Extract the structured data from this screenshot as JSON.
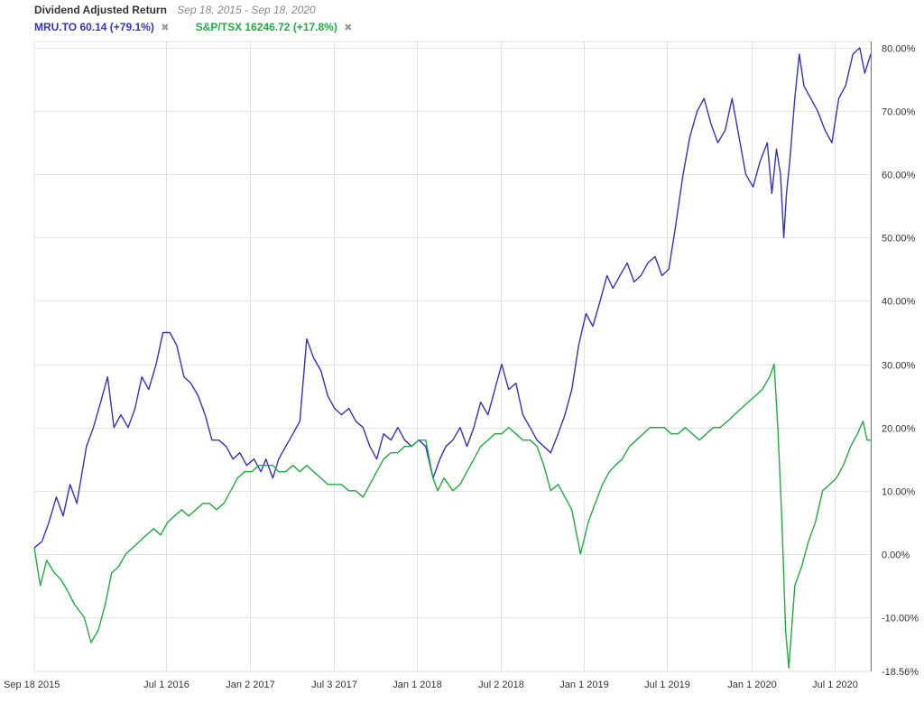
{
  "header": {
    "title": "Dividend Adjusted Return",
    "date_range": "Sep 18, 2015 - Sep 18, 2020"
  },
  "legend": [
    {
      "label": "MRU.TO 60.14 (+79.1%)",
      "color": "#3333bb",
      "close_glyph": "✖"
    },
    {
      "label": "S&P/TSX 16246.72 (+17.8%)",
      "color": "#22aa44",
      "close_glyph": "✖"
    }
  ],
  "chart_data": {
    "type": "line",
    "title": "Dividend Adjusted Return",
    "subtitle": "Sep 18, 2015 - Sep 18, 2020",
    "x_range": [
      "2015-09-18",
      "2020-09-18"
    ],
    "ylim": [
      -18.56,
      81
    ],
    "y_ticks": [
      80,
      70,
      60,
      50,
      40,
      30,
      20,
      10,
      0,
      -10
    ],
    "y_tick_labels": [
      "80.00%",
      "70.00%",
      "60.00%",
      "50.00%",
      "40.00%",
      "30.00%",
      "20.00%",
      "10.00%",
      "0.00%",
      "-10.00%"
    ],
    "y_min_label": "-18.56%",
    "x_ticks": [
      {
        "date": "2015-09-18",
        "label": "Sep 18 2015"
      },
      {
        "date": "2016-07-01",
        "label": "Jul 1 2016"
      },
      {
        "date": "2017-01-02",
        "label": "Jan 2 2017"
      },
      {
        "date": "2017-07-03",
        "label": "Jul 3 2017"
      },
      {
        "date": "2018-01-01",
        "label": "Jan 1 2018"
      },
      {
        "date": "2018-07-02",
        "label": "Jul 2 2018"
      },
      {
        "date": "2019-01-01",
        "label": "Jan 1 2019"
      },
      {
        "date": "2019-07-01",
        "label": "Jul 1 2019"
      },
      {
        "date": "2020-01-01",
        "label": "Jan 1 2020"
      },
      {
        "date": "2020-07-01",
        "label": "Jul 1 2020"
      }
    ],
    "grid": true,
    "legend_position": "top-left",
    "series": [
      {
        "name": "MRU.TO",
        "color": "#3333bb",
        "points": [
          [
            "2015-09-18",
            1
          ],
          [
            "2015-10-05",
            2
          ],
          [
            "2015-10-20",
            5
          ],
          [
            "2015-11-05",
            9
          ],
          [
            "2015-11-20",
            6
          ],
          [
            "2015-12-05",
            11
          ],
          [
            "2015-12-20",
            8
          ],
          [
            "2016-01-10",
            17
          ],
          [
            "2016-01-25",
            20
          ],
          [
            "2016-02-10",
            24
          ],
          [
            "2016-02-25",
            28
          ],
          [
            "2016-03-10",
            20
          ],
          [
            "2016-03-25",
            22
          ],
          [
            "2016-04-10",
            20
          ],
          [
            "2016-04-25",
            23
          ],
          [
            "2016-05-10",
            28
          ],
          [
            "2016-05-25",
            26
          ],
          [
            "2016-06-10",
            30
          ],
          [
            "2016-06-25",
            35
          ],
          [
            "2016-07-10",
            35
          ],
          [
            "2016-07-25",
            33
          ],
          [
            "2016-08-10",
            28
          ],
          [
            "2016-08-25",
            27
          ],
          [
            "2016-09-10",
            25
          ],
          [
            "2016-09-25",
            22
          ],
          [
            "2016-10-10",
            18
          ],
          [
            "2016-10-25",
            18
          ],
          [
            "2016-11-10",
            17
          ],
          [
            "2016-11-25",
            15
          ],
          [
            "2016-12-10",
            16
          ],
          [
            "2016-12-25",
            14
          ],
          [
            "2017-01-10",
            15
          ],
          [
            "2017-01-25",
            13
          ],
          [
            "2017-02-05",
            15
          ],
          [
            "2017-02-20",
            12
          ],
          [
            "2017-03-05",
            15
          ],
          [
            "2017-03-20",
            17
          ],
          [
            "2017-04-05",
            19
          ],
          [
            "2017-04-20",
            21
          ],
          [
            "2017-05-05",
            34
          ],
          [
            "2017-05-20",
            31
          ],
          [
            "2017-06-05",
            29
          ],
          [
            "2017-06-20",
            25
          ],
          [
            "2017-07-05",
            23
          ],
          [
            "2017-07-20",
            22
          ],
          [
            "2017-08-05",
            23
          ],
          [
            "2017-08-20",
            21
          ],
          [
            "2017-09-05",
            20
          ],
          [
            "2017-09-20",
            17
          ],
          [
            "2017-10-05",
            15
          ],
          [
            "2017-10-20",
            19
          ],
          [
            "2017-11-05",
            18
          ],
          [
            "2017-11-20",
            20
          ],
          [
            "2017-12-05",
            18
          ],
          [
            "2017-12-20",
            17
          ],
          [
            "2018-01-05",
            18
          ],
          [
            "2018-01-20",
            17
          ],
          [
            "2018-02-05",
            12
          ],
          [
            "2018-02-20",
            15
          ],
          [
            "2018-03-05",
            17
          ],
          [
            "2018-03-20",
            18
          ],
          [
            "2018-04-05",
            20
          ],
          [
            "2018-04-20",
            17
          ],
          [
            "2018-05-05",
            20
          ],
          [
            "2018-05-20",
            24
          ],
          [
            "2018-06-05",
            22
          ],
          [
            "2018-06-20",
            26
          ],
          [
            "2018-07-05",
            30
          ],
          [
            "2018-07-20",
            26
          ],
          [
            "2018-08-05",
            27
          ],
          [
            "2018-08-20",
            22
          ],
          [
            "2018-09-05",
            20
          ],
          [
            "2018-09-20",
            18
          ],
          [
            "2018-10-05",
            17
          ],
          [
            "2018-10-20",
            16
          ],
          [
            "2018-11-05",
            19
          ],
          [
            "2018-11-20",
            22
          ],
          [
            "2018-12-05",
            26
          ],
          [
            "2018-12-20",
            33
          ],
          [
            "2019-01-05",
            38
          ],
          [
            "2019-01-20",
            36
          ],
          [
            "2019-02-05",
            40
          ],
          [
            "2019-02-20",
            44
          ],
          [
            "2019-03-05",
            42
          ],
          [
            "2019-03-20",
            44
          ],
          [
            "2019-04-05",
            46
          ],
          [
            "2019-04-20",
            43
          ],
          [
            "2019-05-05",
            44
          ],
          [
            "2019-05-20",
            46
          ],
          [
            "2019-06-05",
            47
          ],
          [
            "2019-06-20",
            44
          ],
          [
            "2019-07-05",
            45
          ],
          [
            "2019-07-20",
            52
          ],
          [
            "2019-08-05",
            60
          ],
          [
            "2019-08-20",
            66
          ],
          [
            "2019-09-05",
            70
          ],
          [
            "2019-09-20",
            72
          ],
          [
            "2019-10-05",
            68
          ],
          [
            "2019-10-20",
            65
          ],
          [
            "2019-11-05",
            67
          ],
          [
            "2019-11-20",
            72
          ],
          [
            "2019-12-05",
            66
          ],
          [
            "2019-12-20",
            60
          ],
          [
            "2020-01-05",
            58
          ],
          [
            "2020-01-20",
            62
          ],
          [
            "2020-02-05",
            65
          ],
          [
            "2020-02-15",
            57
          ],
          [
            "2020-02-25",
            64
          ],
          [
            "2020-03-05",
            60
          ],
          [
            "2020-03-12",
            50
          ],
          [
            "2020-03-18",
            57
          ],
          [
            "2020-03-25",
            62
          ],
          [
            "2020-04-05",
            72
          ],
          [
            "2020-04-15",
            79
          ],
          [
            "2020-04-25",
            74
          ],
          [
            "2020-05-10",
            72
          ],
          [
            "2020-05-25",
            70
          ],
          [
            "2020-06-10",
            67
          ],
          [
            "2020-06-25",
            65
          ],
          [
            "2020-07-10",
            72
          ],
          [
            "2020-07-25",
            74
          ],
          [
            "2020-08-10",
            79
          ],
          [
            "2020-08-25",
            80
          ],
          [
            "2020-09-05",
            76
          ],
          [
            "2020-09-18",
            79
          ]
        ]
      },
      {
        "name": "S&P/TSX",
        "color": "#22aa44",
        "points": [
          [
            "2015-09-18",
            1
          ],
          [
            "2015-10-01",
            -5
          ],
          [
            "2015-10-15",
            -1
          ],
          [
            "2015-11-01",
            -3
          ],
          [
            "2015-11-15",
            -4
          ],
          [
            "2015-12-01",
            -6
          ],
          [
            "2015-12-15",
            -8
          ],
          [
            "2016-01-05",
            -10
          ],
          [
            "2016-01-20",
            -14
          ],
          [
            "2016-02-05",
            -12
          ],
          [
            "2016-02-20",
            -8
          ],
          [
            "2016-03-05",
            -3
          ],
          [
            "2016-03-20",
            -2
          ],
          [
            "2016-04-05",
            0
          ],
          [
            "2016-04-20",
            1
          ],
          [
            "2016-05-05",
            2
          ],
          [
            "2016-05-20",
            3
          ],
          [
            "2016-06-05",
            4
          ],
          [
            "2016-06-20",
            3
          ],
          [
            "2016-07-05",
            5
          ],
          [
            "2016-07-20",
            6
          ],
          [
            "2016-08-05",
            7
          ],
          [
            "2016-08-20",
            6
          ],
          [
            "2016-09-05",
            7
          ],
          [
            "2016-09-20",
            8
          ],
          [
            "2016-10-05",
            8
          ],
          [
            "2016-10-20",
            7
          ],
          [
            "2016-11-05",
            8
          ],
          [
            "2016-11-20",
            10
          ],
          [
            "2016-12-05",
            12
          ],
          [
            "2016-12-20",
            13
          ],
          [
            "2017-01-05",
            13
          ],
          [
            "2017-01-20",
            14
          ],
          [
            "2017-02-05",
            14
          ],
          [
            "2017-02-20",
            14
          ],
          [
            "2017-03-05",
            13
          ],
          [
            "2017-03-20",
            13
          ],
          [
            "2017-04-05",
            14
          ],
          [
            "2017-04-20",
            13
          ],
          [
            "2017-05-05",
            14
          ],
          [
            "2017-05-20",
            13
          ],
          [
            "2017-06-05",
            12
          ],
          [
            "2017-06-20",
            11
          ],
          [
            "2017-07-05",
            11
          ],
          [
            "2017-07-20",
            11
          ],
          [
            "2017-08-05",
            10
          ],
          [
            "2017-08-20",
            10
          ],
          [
            "2017-09-05",
            9
          ],
          [
            "2017-09-20",
            11
          ],
          [
            "2017-10-05",
            13
          ],
          [
            "2017-10-20",
            15
          ],
          [
            "2017-11-05",
            16
          ],
          [
            "2017-11-20",
            16
          ],
          [
            "2017-12-05",
            17
          ],
          [
            "2017-12-20",
            17
          ],
          [
            "2018-01-05",
            18
          ],
          [
            "2018-01-20",
            18
          ],
          [
            "2018-02-05",
            12
          ],
          [
            "2018-02-15",
            10
          ],
          [
            "2018-03-01",
            12
          ],
          [
            "2018-03-20",
            10
          ],
          [
            "2018-04-05",
            11
          ],
          [
            "2018-04-20",
            13
          ],
          [
            "2018-05-05",
            15
          ],
          [
            "2018-05-20",
            17
          ],
          [
            "2018-06-05",
            18
          ],
          [
            "2018-06-20",
            19
          ],
          [
            "2018-07-05",
            19
          ],
          [
            "2018-07-20",
            20
          ],
          [
            "2018-08-05",
            19
          ],
          [
            "2018-08-20",
            18
          ],
          [
            "2018-09-05",
            18
          ],
          [
            "2018-09-20",
            17
          ],
          [
            "2018-10-05",
            14
          ],
          [
            "2018-10-20",
            10
          ],
          [
            "2018-11-05",
            11
          ],
          [
            "2018-11-20",
            9
          ],
          [
            "2018-12-05",
            7
          ],
          [
            "2018-12-24",
            0
          ],
          [
            "2019-01-10",
            5
          ],
          [
            "2019-01-25",
            8
          ],
          [
            "2019-02-10",
            11
          ],
          [
            "2019-02-25",
            13
          ],
          [
            "2019-03-10",
            14
          ],
          [
            "2019-03-25",
            15
          ],
          [
            "2019-04-10",
            17
          ],
          [
            "2019-04-25",
            18
          ],
          [
            "2019-05-10",
            19
          ],
          [
            "2019-05-25",
            20
          ],
          [
            "2019-06-10",
            20
          ],
          [
            "2019-06-25",
            20
          ],
          [
            "2019-07-10",
            19
          ],
          [
            "2019-07-25",
            19
          ],
          [
            "2019-08-10",
            20
          ],
          [
            "2019-08-25",
            19
          ],
          [
            "2019-09-10",
            18
          ],
          [
            "2019-09-25",
            19
          ],
          [
            "2019-10-10",
            20
          ],
          [
            "2019-10-25",
            20
          ],
          [
            "2019-11-10",
            21
          ],
          [
            "2019-11-25",
            22
          ],
          [
            "2019-12-10",
            23
          ],
          [
            "2019-12-25",
            24
          ],
          [
            "2020-01-10",
            25
          ],
          [
            "2020-01-25",
            26
          ],
          [
            "2020-02-10",
            28
          ],
          [
            "2020-02-20",
            30
          ],
          [
            "2020-02-28",
            20
          ],
          [
            "2020-03-08",
            5
          ],
          [
            "2020-03-16",
            -12
          ],
          [
            "2020-03-23",
            -18
          ],
          [
            "2020-04-05",
            -5
          ],
          [
            "2020-04-20",
            -2
          ],
          [
            "2020-05-05",
            2
          ],
          [
            "2020-05-20",
            5
          ],
          [
            "2020-06-05",
            10
          ],
          [
            "2020-06-20",
            11
          ],
          [
            "2020-07-05",
            12
          ],
          [
            "2020-07-20",
            14
          ],
          [
            "2020-08-05",
            17
          ],
          [
            "2020-08-20",
            19
          ],
          [
            "2020-09-01",
            21
          ],
          [
            "2020-09-10",
            18
          ],
          [
            "2020-09-18",
            18
          ]
        ]
      }
    ]
  }
}
